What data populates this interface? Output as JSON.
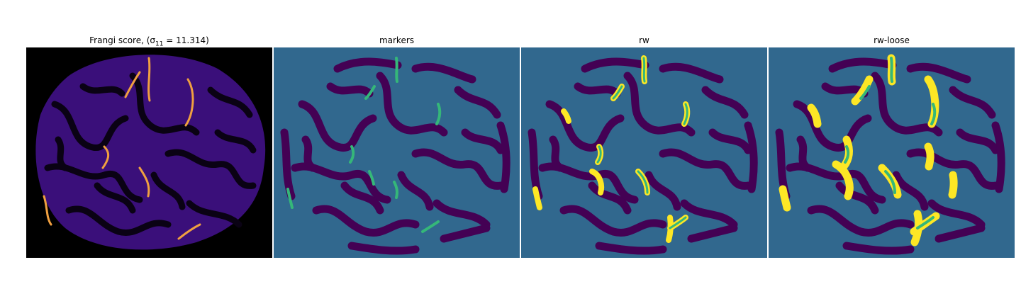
{
  "panels": [
    {
      "id": "frangi",
      "title": "Frangi score, (σ",
      "title_sub": "11",
      "title_tail": " = 11.314)",
      "background": "#000000"
    },
    {
      "id": "markers",
      "title": "markers",
      "background": "#31688e"
    },
    {
      "id": "rw",
      "title": "rw",
      "background": "#31688e"
    },
    {
      "id": "rw-loose",
      "title": "rw-loose",
      "background": "#31688e"
    }
  ],
  "colors": {
    "background_teal": "#31688e",
    "tissue_purple": "#440154",
    "marker_green": "#35b779",
    "segment_yellow": "#fde725",
    "frangi_dark": "#000000",
    "frangi_mid": "#5c1fa8",
    "frangi_hot": "#f8a23a"
  }
}
